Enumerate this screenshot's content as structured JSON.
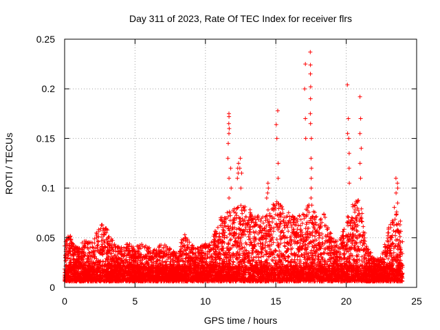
{
  "chart_data": {
    "type": "scatter",
    "title": "Day 311 of 2023, Rate Of TEC Index for receiver flrs",
    "xlabel": "GPS time / hours",
    "ylabel": "ROTI / TECUs",
    "xlim": [
      0,
      25
    ],
    "ylim": [
      0,
      0.25
    ],
    "xticks": [
      0,
      5,
      10,
      15,
      20,
      25
    ],
    "yticks": [
      0,
      0.05,
      0.1,
      0.15,
      0.2,
      0.25
    ],
    "xtick_labels": [
      "0",
      "5",
      "10",
      "15",
      "20",
      "25"
    ],
    "ytick_labels": [
      "0",
      "0.05",
      "0.1",
      "0.15",
      "0.2",
      "0.25"
    ],
    "grid": true,
    "marker": "+",
    "series_color": "#ff0000",
    "data_extent_hours": [
      0,
      24
    ],
    "envelope": {
      "x": [
        0,
        0.25,
        0.5,
        1,
        1.5,
        2,
        2.5,
        3,
        3.5,
        4,
        4.5,
        5,
        5.5,
        6,
        6.5,
        7,
        7.5,
        8,
        8.5,
        9,
        9.5,
        10,
        10.5,
        11,
        11.5,
        12,
        12.5,
        13,
        13.5,
        14,
        14.5,
        15,
        15.5,
        16,
        16.5,
        17,
        17.5,
        18,
        18.5,
        19,
        19.5,
        20,
        20.5,
        21,
        21.5,
        22,
        22.5,
        23,
        23.5,
        24
      ],
      "y": [
        0.045,
        0.065,
        0.045,
        0.04,
        0.05,
        0.045,
        0.065,
        0.06,
        0.045,
        0.04,
        0.045,
        0.04,
        0.045,
        0.04,
        0.04,
        0.045,
        0.04,
        0.035,
        0.055,
        0.045,
        0.04,
        0.045,
        0.05,
        0.07,
        0.075,
        0.08,
        0.085,
        0.08,
        0.075,
        0.07,
        0.08,
        0.09,
        0.08,
        0.075,
        0.07,
        0.08,
        0.085,
        0.07,
        0.075,
        0.05,
        0.045,
        0.07,
        0.085,
        0.09,
        0.04,
        0.03,
        0.03,
        0.06,
        0.085,
        0.06
      ]
    },
    "spikes": [
      {
        "x": 11.3,
        "values": [
          0.062,
          0.068
        ]
      },
      {
        "x": 11.65,
        "values": [
          0.13,
          0.145,
          0.155,
          0.165,
          0.172,
          0.175
        ]
      },
      {
        "x": 11.75,
        "values": [
          0.09,
          0.1,
          0.11,
          0.12,
          0.16
        ]
      },
      {
        "x": 12.3,
        "values": [
          0.11,
          0.115,
          0.12,
          0.125
        ]
      },
      {
        "x": 12.5,
        "values": [
          0.1,
          0.115,
          0.12,
          0.13
        ]
      },
      {
        "x": 14.4,
        "values": [
          0.09,
          0.095,
          0.1,
          0.105
        ]
      },
      {
        "x": 15.1,
        "values": [
          0.11,
          0.125,
          0.15,
          0.164,
          0.178
        ]
      },
      {
        "x": 17.1,
        "values": [
          0.15,
          0.17,
          0.2,
          0.225
        ]
      },
      {
        "x": 17.45,
        "values": [
          0.11,
          0.13,
          0.15,
          0.165,
          0.175,
          0.19,
          0.202,
          0.215,
          0.224,
          0.237
        ]
      },
      {
        "x": 17.55,
        "values": [
          0.09,
          0.1,
          0.12
        ]
      },
      {
        "x": 20.15,
        "values": [
          0.105,
          0.12,
          0.135,
          0.15,
          0.155,
          0.17,
          0.204
        ]
      },
      {
        "x": 20.7,
        "values": [
          0.07,
          0.08,
          0.085
        ]
      },
      {
        "x": 21.05,
        "values": [
          0.11,
          0.125,
          0.14,
          0.155,
          0.17,
          0.192
        ]
      },
      {
        "x": 23.6,
        "values": [
          0.085,
          0.095,
          0.1,
          0.105,
          0.11
        ]
      }
    ]
  }
}
